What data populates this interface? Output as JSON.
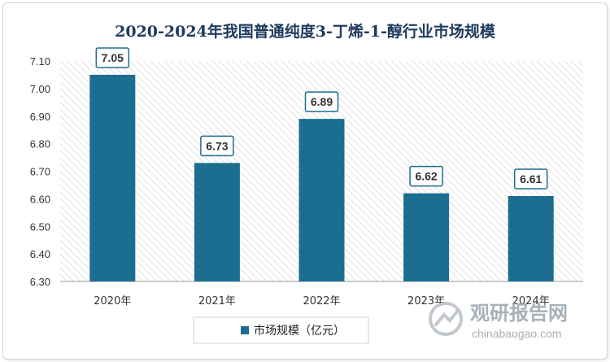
{
  "chart_data": {
    "type": "bar",
    "title": "2020-2024年我国普通纯度3-丁烯-1-醇行业市场规模",
    "categories": [
      "2020年",
      "2021年",
      "2022年",
      "2023年",
      "2024年"
    ],
    "series": [
      {
        "name": "市场规模（亿元）",
        "values": [
          7.05,
          6.73,
          6.89,
          6.62,
          6.61
        ],
        "color": "#1b6e8f"
      }
    ],
    "data_labels": [
      "7.05",
      "6.73",
      "6.89",
      "6.62",
      "6.61"
    ],
    "ylim": [
      6.3,
      7.1
    ],
    "yticks": [
      "6.30",
      "6.40",
      "6.50",
      "6.60",
      "6.70",
      "6.80",
      "6.90",
      "7.00",
      "7.10"
    ],
    "xlabel": "",
    "ylabel": "",
    "grid": false,
    "legend_position": "bottom",
    "plot_background": "diagonal-hatch"
  },
  "watermark": {
    "name_cn": "观研报告网",
    "url": "chinabaogao.com",
    "logo_icon": "chinabaogao-logo-icon"
  }
}
